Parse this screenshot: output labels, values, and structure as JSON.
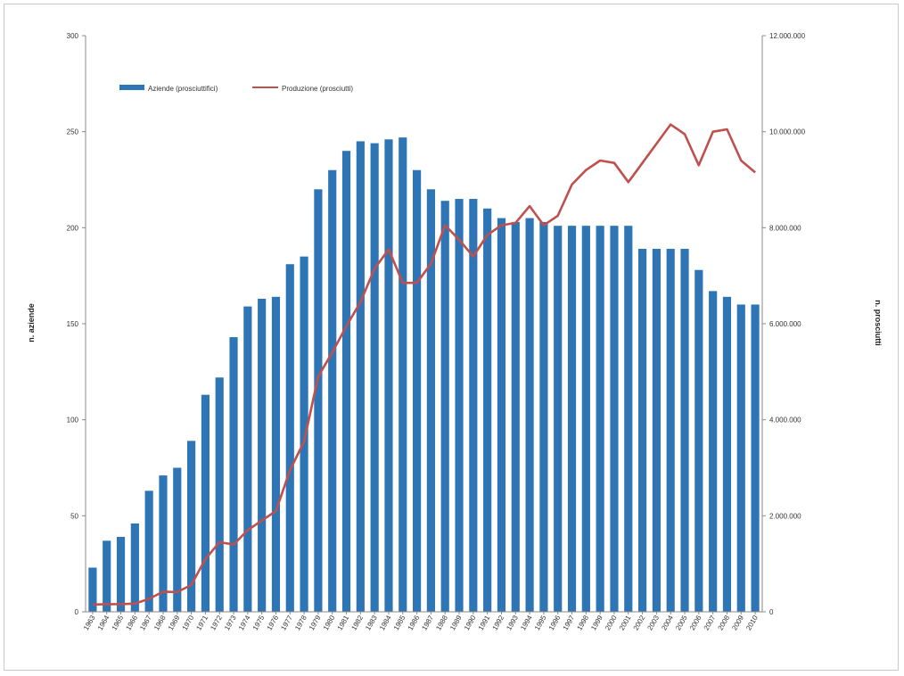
{
  "chart_data": {
    "type": "bar",
    "grid": false,
    "legend_position": "top-left",
    "left_axis_label": "n. aziende",
    "right_axis_label": "n. prosciutti",
    "left_ylim": [
      0,
      300
    ],
    "right_ylim": [
      0,
      12000000
    ],
    "left_ticks": [
      "0",
      "50",
      "100",
      "150",
      "200",
      "250",
      "300"
    ],
    "right_ticks": [
      "0",
      "2.000.000",
      "4.000.000",
      "6.000.000",
      "8.000.000",
      "10.000.000",
      "12.000.000"
    ],
    "categories": [
      "1963",
      "1964",
      "1965",
      "1966",
      "1967",
      "1968",
      "1969",
      "1970",
      "1971",
      "1972",
      "1973",
      "1974",
      "1975",
      "1976",
      "1977",
      "1978",
      "1979",
      "1980",
      "1981",
      "1982",
      "1983",
      "1984",
      "1985",
      "1986",
      "1987",
      "1988",
      "1989",
      "1990",
      "1991",
      "1992",
      "1993",
      "1994",
      "1995",
      "1996",
      "1997",
      "1998",
      "1999",
      "2000",
      "2001",
      "2002",
      "2003",
      "2004",
      "2005",
      "2006",
      "2007",
      "2008",
      "2009",
      "2010"
    ],
    "series": [
      {
        "name": "Aziende (prosciuttifici)",
        "kind": "bar",
        "axis": "left",
        "color": "#2e75b6",
        "values": [
          23,
          37,
          39,
          46,
          63,
          71,
          75,
          89,
          113,
          122,
          143,
          159,
          163,
          164,
          181,
          185,
          220,
          230,
          240,
          245,
          244,
          246,
          247,
          230,
          220,
          214,
          215,
          215,
          210,
          205,
          203,
          205,
          203,
          201,
          201,
          201,
          201,
          201,
          201,
          189,
          189,
          189,
          189,
          178,
          167,
          164,
          160,
          160
        ]
      },
      {
        "name": "Produzione (prosciutti)",
        "kind": "line",
        "axis": "right",
        "color": "#c0504d",
        "values": [
          150000,
          160000,
          160000,
          170000,
          270000,
          420000,
          410000,
          560000,
          1100000,
          1450000,
          1400000,
          1700000,
          1900000,
          2100000,
          2950000,
          3550000,
          4900000,
          5400000,
          5950000,
          6450000,
          7150000,
          7550000,
          6850000,
          6850000,
          7250000,
          8050000,
          7750000,
          7400000,
          7850000,
          8050000,
          8100000,
          8450000,
          8050000,
          8250000,
          8900000,
          9200000,
          9400000,
          9350000,
          8950000,
          9350000,
          9750000,
          10150000,
          9950000,
          9300000,
          10000000,
          10050000,
          9400000,
          9150000
        ]
      }
    ]
  }
}
